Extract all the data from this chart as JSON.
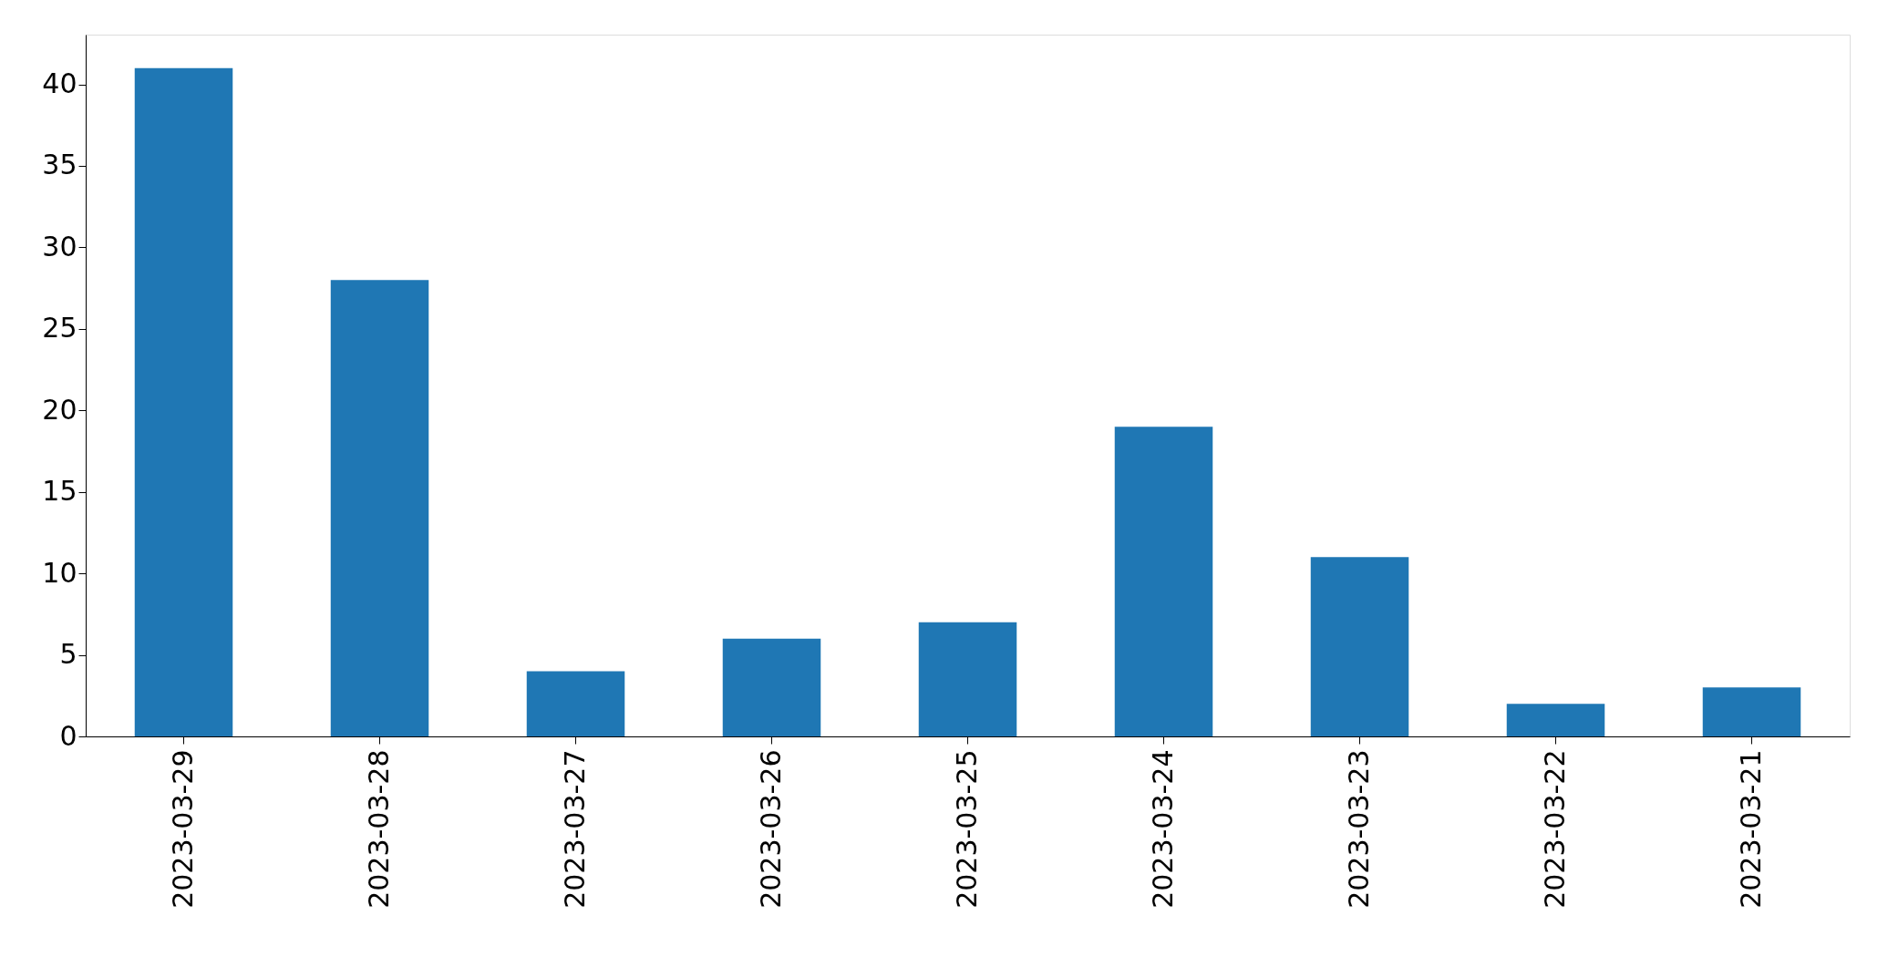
{
  "chart_data": {
    "type": "bar",
    "categories": [
      "2023-03-29",
      "2023-03-28",
      "2023-03-27",
      "2023-03-26",
      "2023-03-25",
      "2023-03-24",
      "2023-03-23",
      "2023-03-22",
      "2023-03-21"
    ],
    "values": [
      41,
      28,
      4,
      6,
      7,
      19,
      11,
      2,
      3
    ],
    "color": "#1f77b4",
    "ylim": [
      0,
      43.05
    ],
    "yticks": [
      0,
      5,
      10,
      15,
      20,
      25,
      30,
      35,
      40
    ],
    "grid": false
  }
}
